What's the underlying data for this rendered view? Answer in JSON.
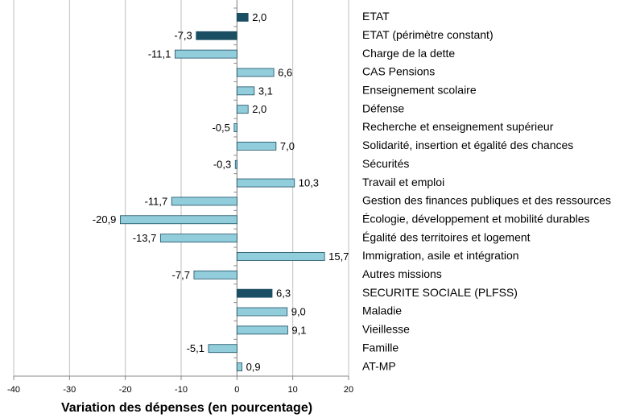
{
  "chart_data": {
    "type": "barh",
    "x_label": "Variation  des dépenses (en pourcentage)",
    "categories": [
      "ETAT",
      "ETAT (périmètre constant)",
      "Charge de la dette",
      "CAS Pensions",
      "Enseignement scolaire",
      "Défense",
      "Recherche et enseignement supérieur",
      "Solidarité, insertion et égalité des chances",
      "Sécurités",
      "Travail et emploi",
      "Gestion des finances publiques et des ressources",
      "Écologie, développement et mobilité durables",
      "Égalité des territoires et logement",
      "Immigration, asile et intégration",
      "Autres missions",
      "SECURITE SOCIALE (PLFSS)",
      "Maladie",
      "Vieillesse",
      "Famille",
      "AT-MP"
    ],
    "values": [
      2.0,
      -7.3,
      -11.1,
      6.6,
      3.1,
      2.0,
      -0.5,
      7.0,
      -0.3,
      10.3,
      -11.7,
      -20.9,
      -13.7,
      15.7,
      -7.7,
      6.3,
      9.0,
      9.1,
      -5.1,
      0.9
    ],
    "value_labels": [
      "2,0",
      "-7,3",
      "-11,1",
      "6,6",
      "3,1",
      "2,0",
      "-0,5",
      "7,0",
      "-0,3",
      "10,3",
      "-11,7",
      "-20,9",
      "-13,7",
      "15,7",
      "-7,7",
      "6,3",
      "9,0",
      "9,1",
      "-5,1",
      "0,9"
    ],
    "colors": [
      "#1a4f63",
      "#1a4f63",
      "#92cddc",
      "#92cddc",
      "#92cddc",
      "#92cddc",
      "#92cddc",
      "#92cddc",
      "#92cddc",
      "#92cddc",
      "#92cddc",
      "#92cddc",
      "#92cddc",
      "#92cddc",
      "#92cddc",
      "#1a4f63",
      "#92cddc",
      "#92cddc",
      "#92cddc",
      "#92cddc"
    ],
    "xlim": [
      -40,
      20
    ],
    "xticks": [
      -40,
      -30,
      -20,
      -10,
      0,
      10,
      20
    ],
    "grid": true
  }
}
